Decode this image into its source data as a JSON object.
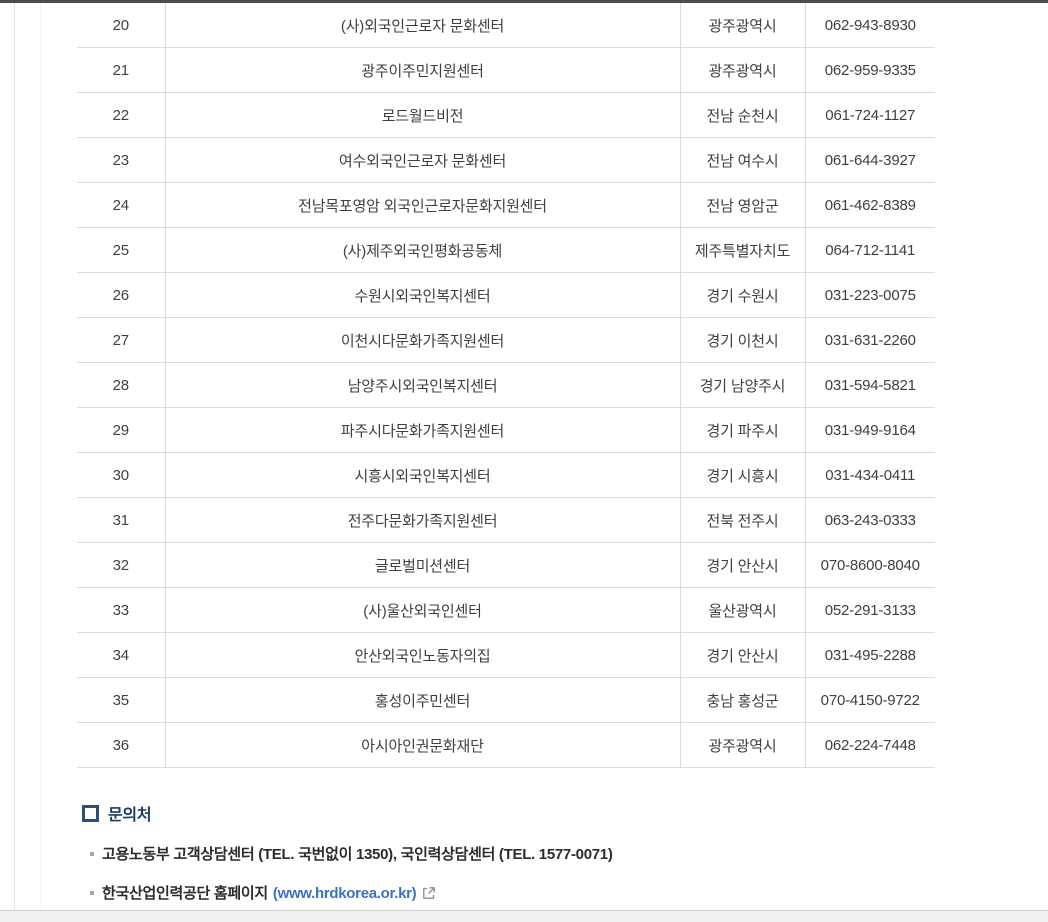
{
  "table": {
    "rows": [
      {
        "no": "20",
        "name": "(사)외국인근로자 문화센터",
        "region": "광주광역시",
        "phone": "062-943-8930"
      },
      {
        "no": "21",
        "name": "광주이주민지원센터",
        "region": "광주광역시",
        "phone": "062-959-9335"
      },
      {
        "no": "22",
        "name": "로드월드비전",
        "region": "전남 순천시",
        "phone": "061-724-1127"
      },
      {
        "no": "23",
        "name": "여수외국인근로자 문화센터",
        "region": "전남 여수시",
        "phone": "061-644-3927"
      },
      {
        "no": "24",
        "name": "전남목포영암 외국인근로자문화지원센터",
        "region": "전남 영암군",
        "phone": "061-462-8389"
      },
      {
        "no": "25",
        "name": "(사)제주외국인평화공동체",
        "region": "제주특별자치도",
        "phone": "064-712-1141"
      },
      {
        "no": "26",
        "name": "수원시외국인복지센터",
        "region": "경기 수원시",
        "phone": "031-223-0075"
      },
      {
        "no": "27",
        "name": "이천시다문화가족지원센터",
        "region": "경기 이천시",
        "phone": "031-631-2260"
      },
      {
        "no": "28",
        "name": "남양주시외국인복지센터",
        "region": "경기 남양주시",
        "phone": "031-594-5821"
      },
      {
        "no": "29",
        "name": "파주시다문화가족지원센터",
        "region": "경기 파주시",
        "phone": "031-949-9164"
      },
      {
        "no": "30",
        "name": "시흥시외국인복지센터",
        "region": "경기 시흥시",
        "phone": "031-434-0411"
      },
      {
        "no": "31",
        "name": "전주다문화가족지원센터",
        "region": "전북 전주시",
        "phone": "063-243-0333"
      },
      {
        "no": "32",
        "name": "글로벌미션센터",
        "region": "경기 안산시",
        "phone": "070-8600-8040"
      },
      {
        "no": "33",
        "name": "(사)울산외국인센터",
        "region": "울산광역시",
        "phone": "052-291-3133"
      },
      {
        "no": "34",
        "name": "안산외국인노동자의집",
        "region": "경기 안산시",
        "phone": "031-495-2288"
      },
      {
        "no": "35",
        "name": "홍성이주민센터",
        "region": "충남 홍성군",
        "phone": "070-4150-9722"
      },
      {
        "no": "36",
        "name": "아시아인권문화재단",
        "region": "광주광역시",
        "phone": "062-224-7448"
      }
    ]
  },
  "inquiry": {
    "title": "문의처",
    "items": [
      {
        "text": "고용노동부 고객상담센터 (TEL. 국번없이 1350), 국인력상담센터 (TEL. 1577-0071)"
      },
      {
        "text": "한국산업인력공단 홈페이지",
        "link": "(www.hrdkorea.or.kr)",
        "icon": "external-link-icon"
      }
    ]
  },
  "colors": {
    "top_border": "#4b4b4b",
    "row_border": "#dcdcdc",
    "table_text": "#3f3f3f",
    "heading_navy": "#1f3c61",
    "link_blue": "#3a72c2",
    "scrollbar_track": "#f1f1f1"
  }
}
